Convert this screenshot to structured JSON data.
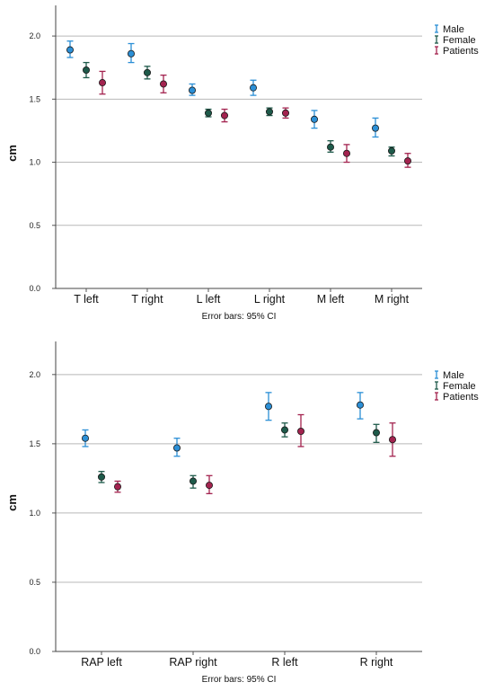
{
  "chart_data": [
    {
      "type": "scatter",
      "error_bar_type": "95% CI",
      "ylabel": "cm",
      "ylim": [
        0,
        2.2
      ],
      "yticks": [
        "0.0",
        "0.5",
        "1.0",
        "1.5",
        "2.0"
      ],
      "ytick_values": [
        0,
        0.5,
        1.0,
        1.5,
        2.0
      ],
      "grid": "horizontal",
      "legend_position": "top-right",
      "note": "Error bars: 95% CI",
      "categories": [
        "T left",
        "T right",
        "L left",
        "L right",
        "M left",
        "M right"
      ],
      "series": [
        {
          "name": "Male",
          "color": "#2b8fd6",
          "values": [
            1.89,
            1.86,
            1.57,
            1.59,
            1.34,
            1.27
          ],
          "lower": [
            1.83,
            1.79,
            1.53,
            1.53,
            1.27,
            1.2
          ],
          "upper": [
            1.96,
            1.94,
            1.62,
            1.65,
            1.41,
            1.35
          ]
        },
        {
          "name": "Female",
          "color": "#1e5a4a",
          "values": [
            1.73,
            1.71,
            1.39,
            1.4,
            1.12,
            1.09
          ],
          "lower": [
            1.67,
            1.66,
            1.36,
            1.37,
            1.08,
            1.05
          ],
          "upper": [
            1.79,
            1.76,
            1.42,
            1.43,
            1.17,
            1.12
          ]
        },
        {
          "name": "Patients",
          "color": "#a3234f",
          "values": [
            1.63,
            1.62,
            1.37,
            1.39,
            1.07,
            1.01
          ],
          "lower": [
            1.54,
            1.55,
            1.32,
            1.35,
            1.0,
            0.96
          ],
          "upper": [
            1.72,
            1.69,
            1.42,
            1.43,
            1.14,
            1.07
          ]
        }
      ]
    },
    {
      "type": "scatter",
      "error_bar_type": "95% CI",
      "ylabel": "cm",
      "ylim": [
        0,
        2.2
      ],
      "yticks": [
        "0.0",
        "0.5",
        "1.0",
        "1.5",
        "2.0"
      ],
      "ytick_values": [
        0,
        0.5,
        1.0,
        1.5,
        2.0
      ],
      "grid": "horizontal",
      "legend_position": "top-right",
      "note": "Error bars: 95% CI",
      "categories": [
        "RAP left",
        "RAP right",
        "R left",
        "R right"
      ],
      "series": [
        {
          "name": "Male",
          "color": "#2b8fd6",
          "values": [
            1.54,
            1.47,
            1.77,
            1.78
          ],
          "lower": [
            1.48,
            1.41,
            1.67,
            1.68
          ],
          "upper": [
            1.6,
            1.54,
            1.87,
            1.87
          ]
        },
        {
          "name": "Female",
          "color": "#1e5a4a",
          "values": [
            1.26,
            1.23,
            1.6,
            1.58
          ],
          "lower": [
            1.22,
            1.18,
            1.55,
            1.51
          ],
          "upper": [
            1.3,
            1.27,
            1.65,
            1.64
          ]
        },
        {
          "name": "Patients",
          "color": "#a3234f",
          "values": [
            1.19,
            1.2,
            1.59,
            1.53
          ],
          "lower": [
            1.15,
            1.14,
            1.48,
            1.41
          ],
          "upper": [
            1.23,
            1.27,
            1.71,
            1.65
          ]
        }
      ]
    }
  ]
}
